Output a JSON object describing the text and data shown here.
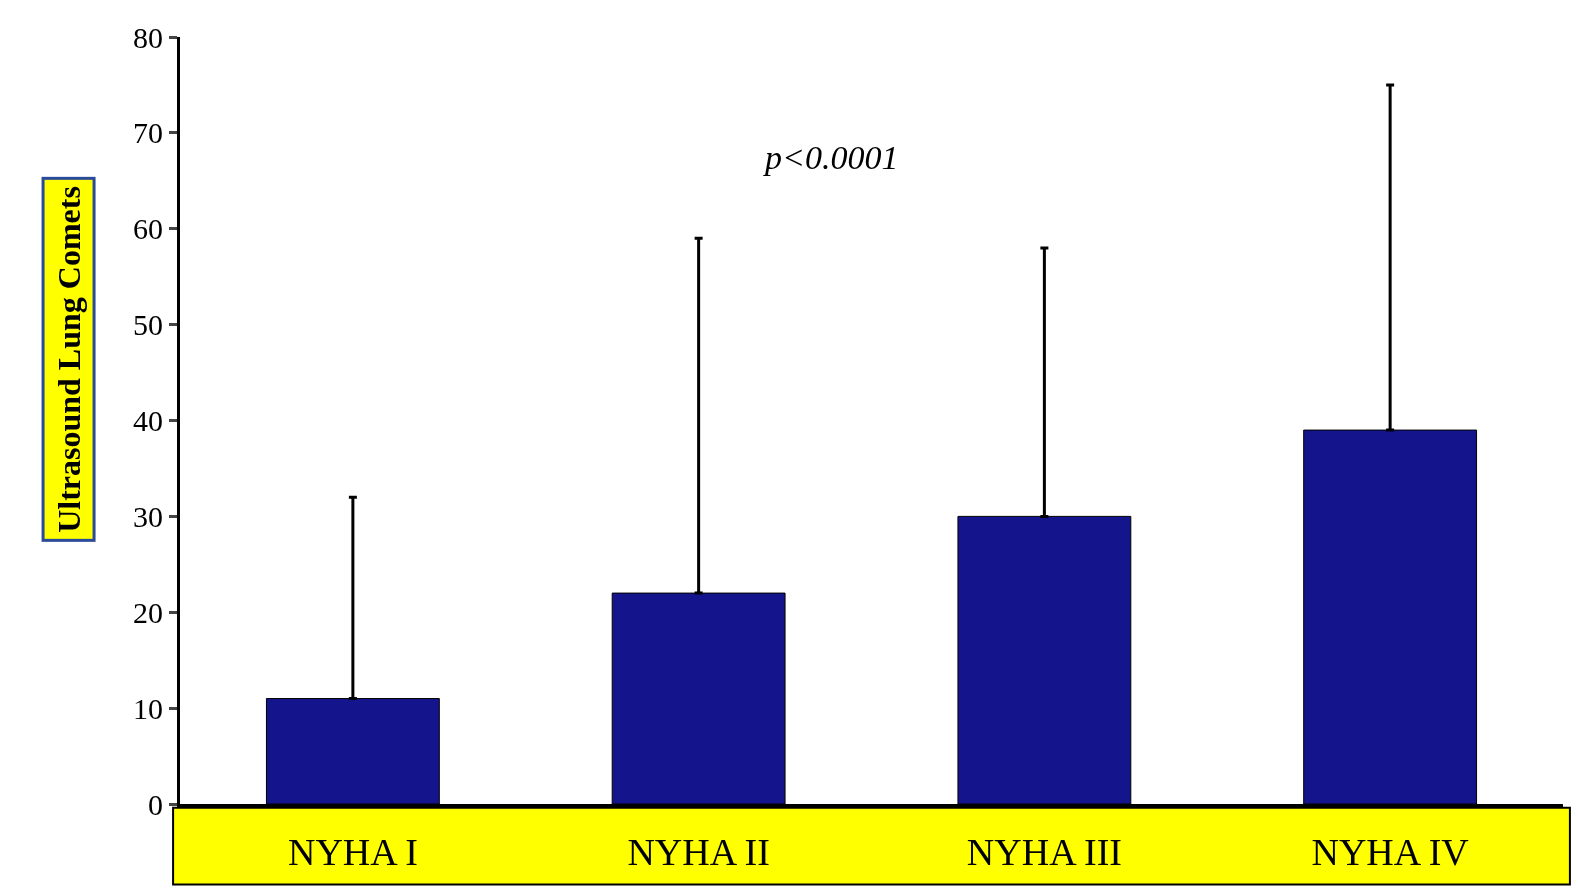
{
  "chart_data": {
    "type": "bar",
    "ylabel": "Ultrasound Lung Comets",
    "categories": [
      "NYHA I",
      "NYHA II",
      "NYHA III",
      "NYHA IV"
    ],
    "values": [
      11,
      22,
      30,
      39
    ],
    "errors": [
      [
        11,
        32
      ],
      [
        22,
        59
      ],
      [
        30,
        58
      ],
      [
        39,
        75
      ]
    ],
    "color": "#14148c",
    "ylim": [
      0,
      80
    ],
    "yticks": [
      0,
      10,
      20,
      30,
      40,
      50,
      60,
      70,
      80
    ],
    "grid": false,
    "annotations": [
      {
        "text": "p<0.0001"
      }
    ]
  }
}
